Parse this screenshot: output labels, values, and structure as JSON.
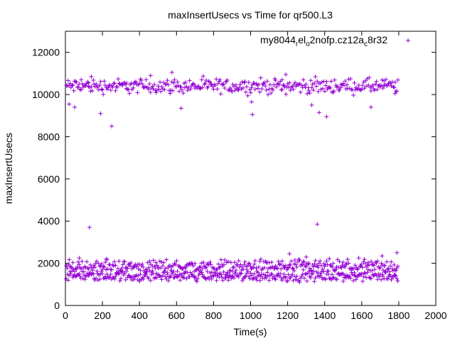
{
  "chart_data": {
    "type": "scatter",
    "title": "maxInsertUsecs vs Time for qr500.L3",
    "xlabel": "Time(s)",
    "ylabel": "maxInsertUsecs",
    "xlim": [
      0,
      2000
    ],
    "ylim": [
      0,
      13000
    ],
    "xticks": [
      "0",
      "200",
      "400",
      "600",
      "800",
      "1000",
      "1200",
      "1400",
      "1600",
      "1800",
      "2000"
    ],
    "yticks": [
      "0",
      "2000",
      "4000",
      "6000",
      "8000",
      "10000",
      "12000"
    ],
    "grid": false,
    "legend": {
      "position": "top-right",
      "label_parts": [
        {
          "text": "my8044",
          "sub": false
        },
        {
          "text": "r",
          "sub": true
        },
        {
          "text": "el",
          "sub": false
        },
        {
          "text": "o",
          "sub": true
        },
        {
          "text": "2nofp.cz12a",
          "sub": false
        },
        {
          "text": "c",
          "sub": true
        },
        {
          "text": "8r32",
          "sub": false
        }
      ]
    },
    "marker": "+",
    "color": "#9400d3",
    "series": [
      {
        "name": "my8044_rel_o2nofp.cz12a_c8r32",
        "bands": [
          {
            "x_start": 5,
            "x_end": 1795,
            "x_step": 5,
            "y_center": 10400,
            "y_spread": 170
          },
          {
            "x_start": 5,
            "x_end": 1795,
            "x_step": 5,
            "y_center": 1850,
            "y_spread": 160
          },
          {
            "x_start": 5,
            "x_end": 1795,
            "x_step": 5,
            "y_center": 1400,
            "y_spread": 120
          }
        ],
        "outliers": [
          [
            20,
            9550
          ],
          [
            50,
            9400
          ],
          [
            85,
            10700
          ],
          [
            125,
            10550
          ],
          [
            140,
            10850
          ],
          [
            190,
            9100
          ],
          [
            250,
            8500
          ],
          [
            330,
            10550
          ],
          [
            460,
            10900
          ],
          [
            575,
            11050
          ],
          [
            625,
            9350
          ],
          [
            1005,
            9650
          ],
          [
            1010,
            9050
          ],
          [
            1170,
            10700
          ],
          [
            1190,
            10950
          ],
          [
            1330,
            9500
          ],
          [
            1370,
            9150
          ],
          [
            1410,
            8950
          ],
          [
            1650,
            9400
          ],
          [
            1720,
            10650
          ],
          [
            1780,
            10050
          ],
          [
            130,
            3700
          ],
          [
            1360,
            3850
          ],
          [
            75,
            2250
          ],
          [
            220,
            2200
          ],
          [
            1210,
            2450
          ],
          [
            1300,
            2300
          ],
          [
            1790,
            2500
          ],
          [
            1710,
            2350
          ],
          [
            400,
            1150
          ],
          [
            880,
            1200
          ],
          [
            1500,
            1150
          ]
        ]
      }
    ]
  }
}
